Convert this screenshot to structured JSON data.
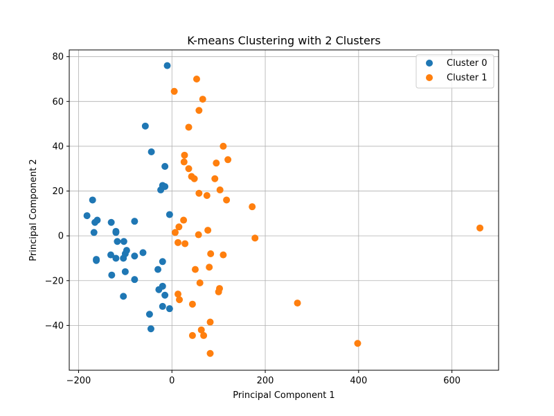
{
  "chart_data": {
    "type": "scatter",
    "title": "K-means Clustering with 2 Clusters",
    "xlabel": "Principal Component 1",
    "ylabel": "Principal Component 2",
    "xlim": [
      -220,
      700
    ],
    "ylim": [
      -60,
      83
    ],
    "xticks": [
      -200,
      0,
      200,
      400,
      600
    ],
    "yticks": [
      -40,
      -20,
      0,
      20,
      40,
      60,
      80
    ],
    "grid": true,
    "legend_position": "top-right",
    "series": [
      {
        "name": "Cluster 0",
        "color": "#1f77b4",
        "points": [
          [
            -10,
            76
          ],
          [
            -57,
            49
          ],
          [
            -44,
            37.5
          ],
          [
            -15,
            31
          ],
          [
            -20,
            22.5
          ],
          [
            -15,
            22
          ],
          [
            -24,
            20.5
          ],
          [
            -5,
            9.5
          ],
          [
            -170,
            16
          ],
          [
            -182,
            9
          ],
          [
            -160,
            7
          ],
          [
            -165,
            6
          ],
          [
            -130,
            6
          ],
          [
            -80,
            6.5
          ],
          [
            -120,
            2
          ],
          [
            -120,
            1.5
          ],
          [
            -167,
            1.5
          ],
          [
            -117,
            -2.5
          ],
          [
            -103,
            -2.5
          ],
          [
            -97,
            -6.5
          ],
          [
            -62,
            -7.5
          ],
          [
            -100,
            -8
          ],
          [
            -131,
            -8.5
          ],
          [
            -80,
            -9
          ],
          [
            -104,
            -10
          ],
          [
            -120,
            -10
          ],
          [
            -162,
            -11
          ],
          [
            -162,
            -10.5
          ],
          [
            -20,
            -11.5
          ],
          [
            -30,
            -15
          ],
          [
            -100,
            -16
          ],
          [
            -129,
            -17.5
          ],
          [
            -80,
            -19.5
          ],
          [
            -20,
            -22.5
          ],
          [
            -28,
            -24
          ],
          [
            -104,
            -27
          ],
          [
            -15,
            -26.5
          ],
          [
            -20,
            -31.5
          ],
          [
            -5,
            -32.5
          ],
          [
            -48,
            -35
          ],
          [
            -45,
            -41.5
          ]
        ]
      },
      {
        "name": "Cluster 1",
        "color": "#ff7f0e",
        "points": [
          [
            53,
            70
          ],
          [
            5,
            64.5
          ],
          [
            66,
            61
          ],
          [
            58,
            56
          ],
          [
            36,
            48.5
          ],
          [
            110,
            40
          ],
          [
            27,
            36
          ],
          [
            120,
            34
          ],
          [
            26,
            33
          ],
          [
            95,
            32.5
          ],
          [
            36,
            30
          ],
          [
            42,
            26.5
          ],
          [
            48,
            25.5
          ],
          [
            92,
            25.5
          ],
          [
            103,
            20.5
          ],
          [
            58,
            19
          ],
          [
            75,
            18
          ],
          [
            117,
            16
          ],
          [
            172,
            13
          ],
          [
            25,
            7
          ],
          [
            15,
            4
          ],
          [
            7,
            1.5
          ],
          [
            77,
            2.5
          ],
          [
            57,
            0.5
          ],
          [
            178,
            -1
          ],
          [
            660,
            3.5
          ],
          [
            13,
            -3
          ],
          [
            28,
            -3.5
          ],
          [
            83,
            -8
          ],
          [
            110,
            -8.5
          ],
          [
            80,
            -14
          ],
          [
            50,
            -15
          ],
          [
            60,
            -21
          ],
          [
            102,
            -23.5
          ],
          [
            100,
            -25
          ],
          [
            13,
            -26
          ],
          [
            16,
            -28.5
          ],
          [
            44,
            -30.5
          ],
          [
            269,
            -30
          ],
          [
            82,
            -38.5
          ],
          [
            63,
            -42
          ],
          [
            44,
            -44.5
          ],
          [
            68,
            -44.5
          ],
          [
            398,
            -48
          ],
          [
            82,
            -52.5
          ]
        ]
      }
    ]
  }
}
